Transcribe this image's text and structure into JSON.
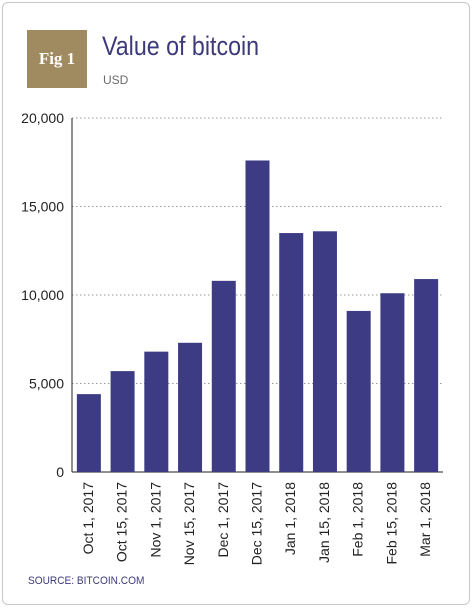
{
  "header": {
    "badge_text": "Fig 1",
    "title": "Value of bitcoin",
    "subtitle": "USD"
  },
  "footer": {
    "source": "SOURCE: BITCOIN.COM"
  },
  "colors": {
    "bar": "#3d3b84",
    "badge": "#a08b60",
    "title": "#3d3a7a",
    "grid": "#9a9a9a"
  },
  "chart_data": {
    "type": "bar",
    "title": "Value of bitcoin",
    "subtitle": "USD",
    "xlabel": "",
    "ylabel": "",
    "ylim": [
      0,
      20000
    ],
    "yticks": [
      0,
      5000,
      10000,
      15000,
      20000
    ],
    "ytick_labels": [
      "0",
      "5,000",
      "10,000",
      "15,000",
      "20,000"
    ],
    "grid": true,
    "categories": [
      "Oct 1, 2017",
      "Oct 15, 2017",
      "Nov 1, 2017",
      "Nov 15, 2017",
      "Dec 1, 2017",
      "Dec 15, 2017",
      "Jan 1, 2018",
      "Jan 15, 2018",
      "Feb 1, 2018",
      "Feb 15, 2018",
      "Mar 1, 2018"
    ],
    "values": [
      4400,
      5700,
      6800,
      7300,
      10800,
      17600,
      13500,
      13600,
      9100,
      10100,
      10900
    ]
  }
}
